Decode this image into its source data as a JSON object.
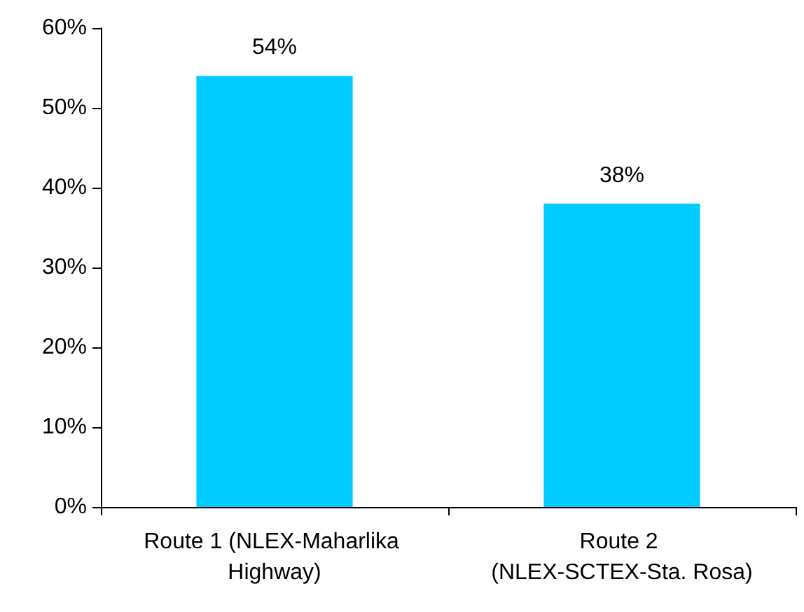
{
  "chart_data": {
    "type": "bar",
    "categories": [
      "Route 1 (NLEX-Maharlika Highway)",
      "Route 2 (NLEX-SCTEX-Sta. Rosa)"
    ],
    "values": [
      54,
      38
    ],
    "value_labels": [
      "54%",
      "38%"
    ],
    "color": "#00ccff",
    "ylim": [
      0,
      60
    ],
    "yticks": [
      {
        "value": 0,
        "label": "0%"
      },
      {
        "value": 10,
        "label": "10%"
      },
      {
        "value": 20,
        "label": "20%"
      },
      {
        "value": 30,
        "label": "30%"
      },
      {
        "value": 40,
        "label": "40%"
      },
      {
        "value": 50,
        "label": "50%"
      },
      {
        "value": 60,
        "label": "60%"
      }
    ],
    "grid": false
  }
}
